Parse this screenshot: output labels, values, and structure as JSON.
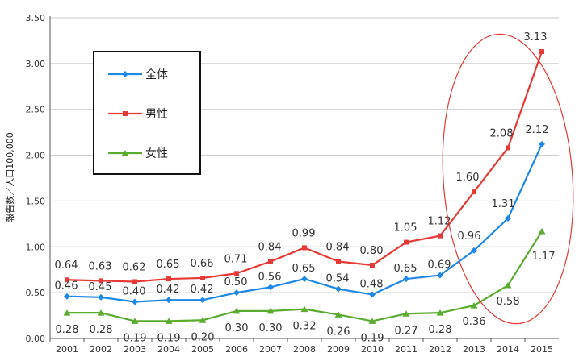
{
  "chart_data": {
    "type": "line",
    "title": "",
    "xlabel": "",
    "ylabel": "報告数／人口100,000",
    "ylim": [
      0,
      3.5
    ],
    "yticks": [
      "0.00",
      "0.50",
      "1.00",
      "1.50",
      "2.00",
      "2.50",
      "3.00",
      "3.50"
    ],
    "categories": [
      "2001",
      "2002",
      "2003",
      "2004",
      "2005",
      "2006",
      "2007",
      "2008",
      "2009",
      "2010",
      "2011",
      "2012",
      "2013",
      "2014",
      "2015"
    ],
    "grid": true,
    "legend_position": "top-left",
    "series": [
      {
        "name": "全体",
        "color": "#1e88e5",
        "marker": "diamond",
        "values": [
          0.46,
          0.45,
          0.4,
          0.42,
          0.42,
          0.5,
          0.56,
          0.65,
          0.54,
          0.48,
          0.65,
          0.69,
          0.96,
          1.31,
          2.12
        ],
        "labels": [
          "0.46",
          "0.45",
          "0.40",
          "0.42",
          "0.42",
          "0.50",
          "0.56",
          "0.65",
          "0.54",
          "0.48",
          "0.65",
          "0.69",
          "0.96",
          "1.31",
          "2.12"
        ]
      },
      {
        "name": "男性",
        "color": "#e53935",
        "marker": "square",
        "values": [
          0.64,
          0.63,
          0.62,
          0.65,
          0.66,
          0.71,
          0.84,
          0.99,
          0.84,
          0.8,
          1.05,
          1.12,
          1.6,
          2.08,
          3.13
        ],
        "labels": [
          "0.64",
          "0.63",
          "0.62",
          "0.65",
          "0.66",
          "0.71",
          "0.84",
          "0.99",
          "0.84",
          "0.80",
          "1.05",
          "1.12",
          "1.60",
          "2.08",
          "3.13"
        ]
      },
      {
        "name": "女性",
        "color": "#5aab2f",
        "marker": "triangle",
        "values": [
          0.28,
          0.28,
          0.19,
          0.19,
          0.2,
          0.3,
          0.3,
          0.32,
          0.26,
          0.19,
          0.27,
          0.28,
          0.36,
          0.58,
          1.17
        ],
        "labels": [
          "0.28",
          "0.28",
          "0.19",
          "0.19",
          "0.20",
          "0.30",
          "0.30",
          "0.32",
          "0.26",
          "0.19",
          "0.27",
          "0.28",
          "0.36",
          "0.58",
          "1.17"
        ]
      }
    ],
    "annotation": {
      "type": "ellipse",
      "color": "#e53935",
      "covers_categories": [
        "2013",
        "2014",
        "2015"
      ]
    }
  }
}
